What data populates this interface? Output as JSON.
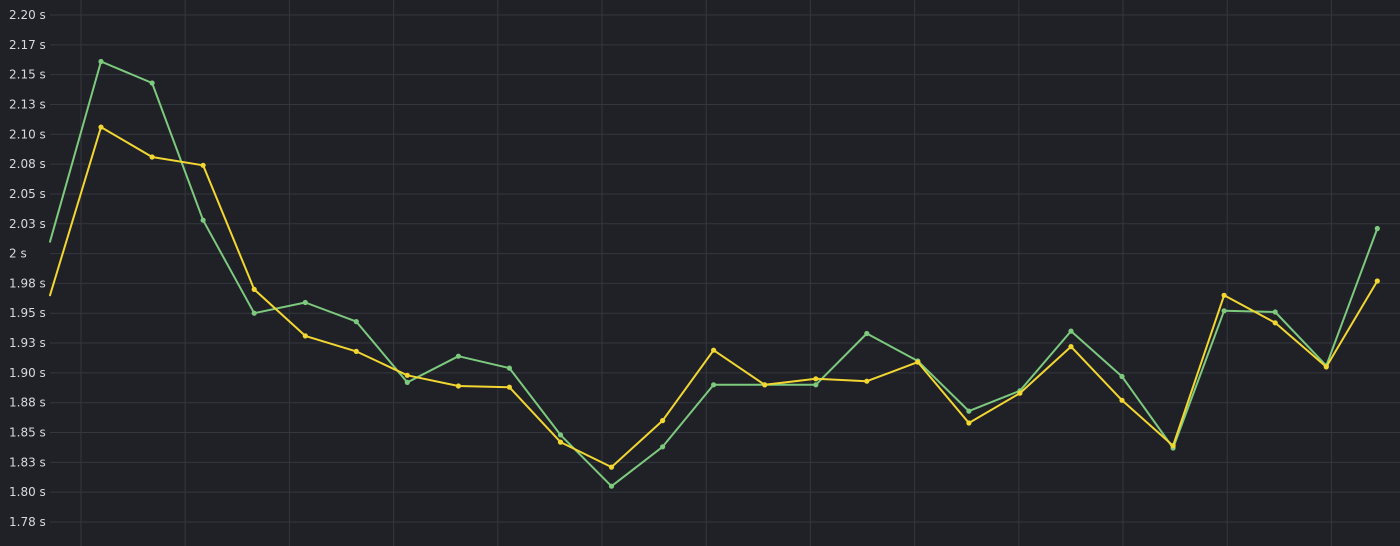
{
  "chart_data": {
    "type": "line",
    "title": "",
    "xlabel": "",
    "ylabel": "",
    "grid": true,
    "legend": "none",
    "y_unit": "s",
    "ylim": [
      1.77,
      2.2
    ],
    "y_ticks": [
      {
        "value": 2.2,
        "label": "2.20 s"
      },
      {
        "value": 2.175,
        "label": "2.17 s"
      },
      {
        "value": 2.15,
        "label": "2.15 s"
      },
      {
        "value": 2.125,
        "label": "2.13 s"
      },
      {
        "value": 2.1,
        "label": "2.10 s"
      },
      {
        "value": 2.075,
        "label": "2.08 s"
      },
      {
        "value": 2.05,
        "label": "2.05 s"
      },
      {
        "value": 2.025,
        "label": "2.03 s"
      },
      {
        "value": 2.0,
        "label": "2 s"
      },
      {
        "value": 1.975,
        "label": "1.98 s"
      },
      {
        "value": 1.95,
        "label": "1.95 s"
      },
      {
        "value": 1.925,
        "label": "1.93 s"
      },
      {
        "value": 1.9,
        "label": "1.90 s"
      },
      {
        "value": 1.875,
        "label": "1.88 s"
      },
      {
        "value": 1.85,
        "label": "1.85 s"
      },
      {
        "value": 1.825,
        "label": "1.83 s"
      },
      {
        "value": 1.8,
        "label": "1.80 s"
      },
      {
        "value": 1.775,
        "label": "1.78 s"
      }
    ],
    "x_gridlines": 13,
    "series": [
      {
        "color": "#7dc97e",
        "values": [
          2.01,
          2.161,
          2.143,
          2.028,
          1.95,
          1.959,
          1.943,
          1.892,
          1.914,
          1.904,
          1.848,
          1.805,
          1.838,
          1.89,
          1.89,
          1.89,
          1.933,
          1.91,
          1.868,
          1.885,
          1.935,
          1.897,
          1.837,
          1.952,
          1.951,
          1.906,
          2.021
        ]
      },
      {
        "color": "#f2d632",
        "values": [
          1.965,
          2.106,
          2.081,
          2.074,
          1.97,
          1.931,
          1.918,
          1.898,
          1.889,
          1.888,
          1.842,
          1.821,
          1.86,
          1.919,
          1.89,
          1.895,
          1.893,
          1.909,
          1.858,
          1.883,
          1.922,
          1.877,
          1.839,
          1.965,
          1.942,
          1.905,
          1.977
        ]
      }
    ]
  }
}
